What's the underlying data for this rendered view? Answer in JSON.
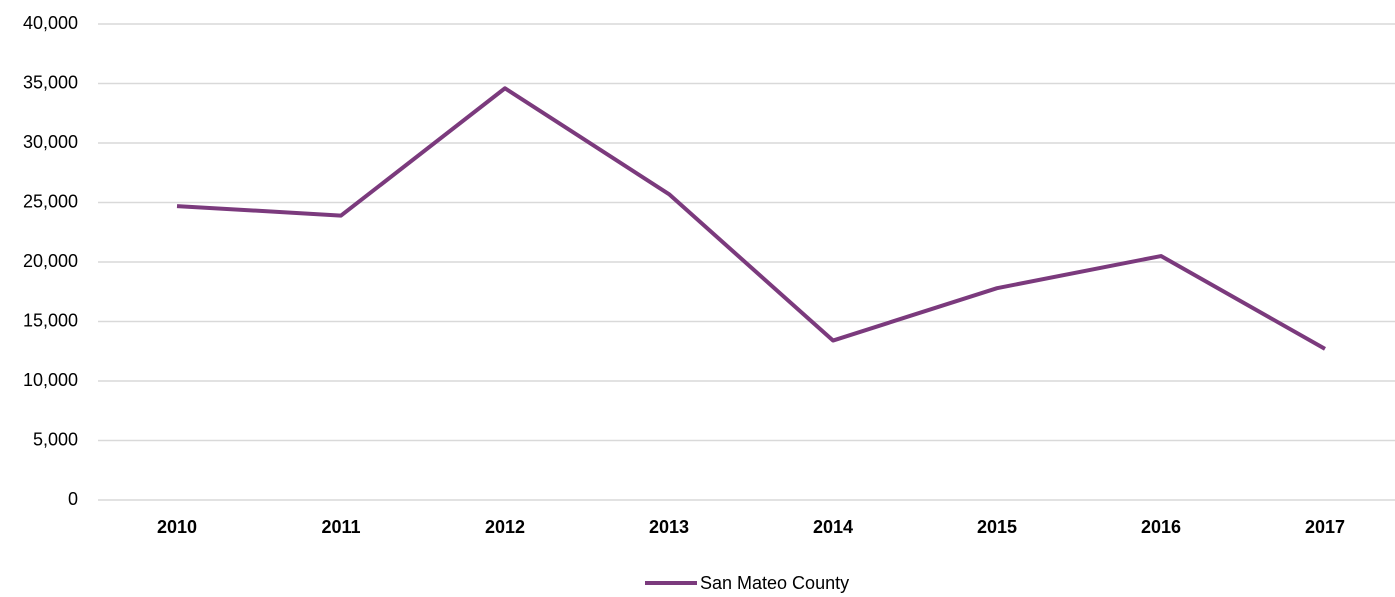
{
  "chart_data": {
    "type": "line",
    "categories": [
      "2010",
      "2011",
      "2012",
      "2013",
      "2014",
      "2015",
      "2016",
      "2017"
    ],
    "series": [
      {
        "name": "San Mateo County",
        "color": "#7b3a7d",
        "values": [
          24700,
          23900,
          34600,
          25700,
          13400,
          17800,
          20500,
          12700
        ]
      }
    ],
    "ylim": [
      0,
      40000
    ],
    "yticks": [
      0,
      {
        "value": 5000,
        "label": "5,000"
      },
      {
        "value": 10000,
        "label": "10,000"
      },
      {
        "value": 15000,
        "label": "15,000"
      },
      {
        "value": 20000,
        "label": "20,000"
      },
      {
        "value": 25000,
        "label": "25,000"
      },
      {
        "value": 30000,
        "label": "30,000"
      },
      {
        "value": 35000,
        "label": "35,000"
      },
      {
        "value": 40000,
        "label": "40,000"
      }
    ],
    "grid": true,
    "legend": "bottom"
  }
}
